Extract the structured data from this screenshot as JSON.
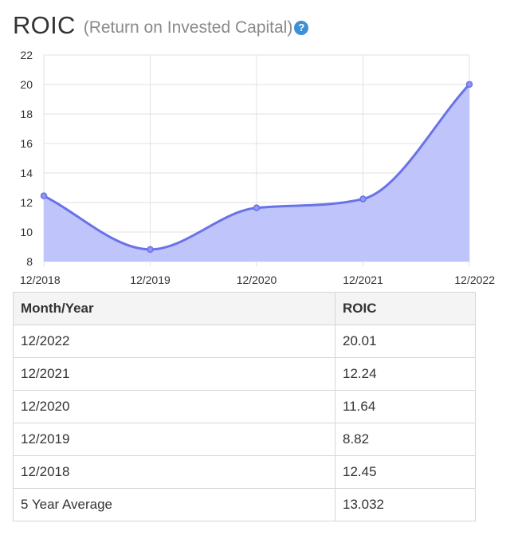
{
  "header": {
    "title": "ROIC",
    "subtitle": "(Return on Invested Capital)",
    "help_icon": "?"
  },
  "colors": {
    "line": "#6a72e8",
    "area": "#bfc4fb",
    "marker_fill": "#8f96f7",
    "grid": "#e2e2e2",
    "help_icon": "#3d8fd6"
  },
  "chart_data": {
    "type": "area",
    "title": "",
    "xlabel": "",
    "ylabel": "",
    "x": [
      "12/2018",
      "12/2019",
      "12/2020",
      "12/2021",
      "12/2022"
    ],
    "series": [
      {
        "values": [
          12.45,
          8.82,
          11.64,
          12.24,
          20.01
        ]
      }
    ],
    "ylim": [
      8,
      22
    ],
    "yticks": [
      8,
      10,
      12,
      14,
      16,
      18,
      20,
      22
    ],
    "grid": true,
    "smooth": true
  },
  "table": {
    "headers": [
      "Month/Year",
      "ROIC"
    ],
    "rows": [
      [
        "12/2022",
        "20.01"
      ],
      [
        "12/2021",
        "12.24"
      ],
      [
        "12/2020",
        "11.64"
      ],
      [
        "12/2019",
        "8.82"
      ],
      [
        "12/2018",
        "12.45"
      ],
      [
        "5 Year Average",
        "13.032"
      ]
    ]
  }
}
